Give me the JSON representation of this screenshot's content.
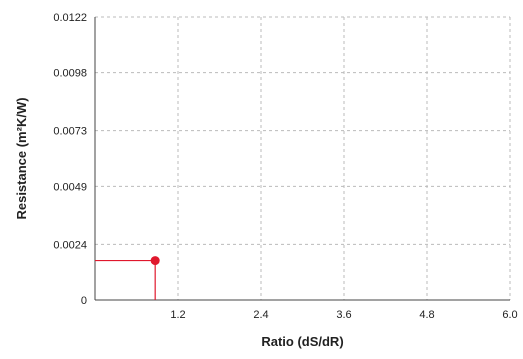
{
  "chart_data": {
    "type": "scatter",
    "title": "",
    "xlabel": "Ratio (dS/dR)",
    "ylabel": "Resistance (m²K/W)",
    "xlim": [
      0.0,
      6.0
    ],
    "ylim": [
      0.0,
      0.0122
    ],
    "x_ticks": [
      1.2,
      2.4,
      3.6,
      4.8,
      6.0
    ],
    "x_tick_labels": [
      "1.2",
      "2.4",
      "3.6",
      "4.8",
      "6.0"
    ],
    "y_ticks": [
      0,
      0.0024,
      0.0049,
      0.0073,
      0.0098,
      0.0122
    ],
    "y_tick_labels": [
      "0",
      "0.0024",
      "0.0049",
      "0.0073",
      "0.0098",
      "0.0122"
    ],
    "grid": true,
    "grid_style": "dashed",
    "series": [
      {
        "points": [
          {
            "x": 0.87,
            "y": 0.0017
          }
        ],
        "color": "#e0182d",
        "guide_lines": true
      }
    ],
    "colors": {
      "axis": "#444444",
      "grid": "#bbbbbb",
      "text": "#222222",
      "marker": "#e0182d"
    }
  }
}
